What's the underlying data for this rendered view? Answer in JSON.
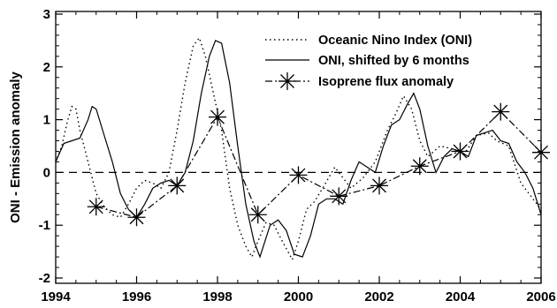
{
  "chart_data": {
    "type": "line",
    "title": "",
    "xlabel": "",
    "ylabel": "ONI - Emission anomaly",
    "xlim": [
      1994,
      2006
    ],
    "ylim": [
      -2.1,
      3.05
    ],
    "x_ticks": [
      "1994",
      "1996",
      "1998",
      "2000",
      "2002",
      "2004",
      "2006"
    ],
    "y_ticks": [
      "-2",
      "-1",
      "0",
      "1",
      "2",
      "3"
    ],
    "grid": false,
    "legend_position": "top-right",
    "zero_line": "dashed",
    "series": [
      {
        "name": "Oceanic Nino Index (ONI)",
        "style": "dotted",
        "points": [
          [
            1994.0,
            0.2
          ],
          [
            1994.15,
            0.5
          ],
          [
            1994.3,
            1.0
          ],
          [
            1994.4,
            1.25
          ],
          [
            1994.5,
            1.2
          ],
          [
            1994.6,
            0.8
          ],
          [
            1994.8,
            0.2
          ],
          [
            1995.0,
            -0.4
          ],
          [
            1995.2,
            -0.65
          ],
          [
            1995.4,
            -0.8
          ],
          [
            1995.6,
            -0.85
          ],
          [
            1995.8,
            -0.6
          ],
          [
            1996.0,
            -0.3
          ],
          [
            1996.2,
            -0.15
          ],
          [
            1996.4,
            -0.2
          ],
          [
            1996.6,
            -0.3
          ],
          [
            1996.8,
            0.0
          ],
          [
            1997.0,
            0.8
          ],
          [
            1997.2,
            1.7
          ],
          [
            1997.4,
            2.4
          ],
          [
            1997.55,
            2.55
          ],
          [
            1997.7,
            2.2
          ],
          [
            1997.9,
            1.5
          ],
          [
            1998.1,
            0.8
          ],
          [
            1998.3,
            -0.3
          ],
          [
            1998.5,
            -1.0
          ],
          [
            1998.7,
            -1.4
          ],
          [
            1998.85,
            -1.6
          ],
          [
            1999.0,
            -1.3
          ],
          [
            1999.2,
            -0.95
          ],
          [
            1999.4,
            -1.0
          ],
          [
            1999.6,
            -1.3
          ],
          [
            1999.85,
            -1.65
          ],
          [
            2000.0,
            -1.3
          ],
          [
            2000.2,
            -0.7
          ],
          [
            2000.4,
            -0.55
          ],
          [
            2000.6,
            -0.3
          ],
          [
            2000.9,
            0.1
          ],
          [
            2001.1,
            -0.1
          ],
          [
            2001.3,
            -0.3
          ],
          [
            2001.6,
            -0.1
          ],
          [
            2001.9,
            0.2
          ],
          [
            2002.2,
            0.8
          ],
          [
            2002.4,
            1.1
          ],
          [
            2002.6,
            1.45
          ],
          [
            2002.8,
            1.2
          ],
          [
            2003.0,
            0.6
          ],
          [
            2003.2,
            0.3
          ],
          [
            2003.5,
            0.5
          ],
          [
            2003.8,
            0.45
          ],
          [
            2004.1,
            0.35
          ],
          [
            2004.4,
            0.7
          ],
          [
            2004.7,
            0.75
          ],
          [
            2004.9,
            0.6
          ],
          [
            2005.2,
            0.5
          ],
          [
            2005.5,
            -0.2
          ],
          [
            2005.8,
            -0.5
          ],
          [
            2006.0,
            -0.7
          ]
        ]
      },
      {
        "name": "ONI, shifted by 6 months",
        "style": "solid",
        "points": [
          [
            1994.0,
            0.2
          ],
          [
            1994.2,
            0.55
          ],
          [
            1994.4,
            0.6
          ],
          [
            1994.6,
            0.65
          ],
          [
            1994.8,
            1.0
          ],
          [
            1994.9,
            1.25
          ],
          [
            1995.0,
            1.2
          ],
          [
            1995.2,
            0.7
          ],
          [
            1995.4,
            0.2
          ],
          [
            1995.6,
            -0.4
          ],
          [
            1995.8,
            -0.7
          ],
          [
            1996.0,
            -0.85
          ],
          [
            1996.2,
            -0.6
          ],
          [
            1996.4,
            -0.3
          ],
          [
            1996.6,
            -0.2
          ],
          [
            1996.8,
            -0.15
          ],
          [
            1997.0,
            -0.25
          ],
          [
            1997.2,
            0.0
          ],
          [
            1997.4,
            0.6
          ],
          [
            1997.6,
            1.5
          ],
          [
            1997.8,
            2.2
          ],
          [
            1997.95,
            2.5
          ],
          [
            1998.1,
            2.45
          ],
          [
            1998.3,
            1.7
          ],
          [
            1998.5,
            0.5
          ],
          [
            1998.7,
            -0.6
          ],
          [
            1998.9,
            -1.3
          ],
          [
            1999.05,
            -1.6
          ],
          [
            1999.3,
            -1.0
          ],
          [
            1999.5,
            -0.9
          ],
          [
            1999.7,
            -1.1
          ],
          [
            1999.9,
            -1.55
          ],
          [
            2000.1,
            -1.6
          ],
          [
            2000.3,
            -1.2
          ],
          [
            2000.5,
            -0.6
          ],
          [
            2000.7,
            -0.5
          ],
          [
            2000.9,
            -0.5
          ],
          [
            2001.1,
            -0.6
          ],
          [
            2001.3,
            -0.15
          ],
          [
            2001.5,
            0.2
          ],
          [
            2001.7,
            0.1
          ],
          [
            2001.9,
            0.0
          ],
          [
            2002.1,
            0.5
          ],
          [
            2002.3,
            0.9
          ],
          [
            2002.5,
            1.0
          ],
          [
            2002.7,
            1.3
          ],
          [
            2002.85,
            1.5
          ],
          [
            2003.0,
            1.2
          ],
          [
            2003.2,
            0.5
          ],
          [
            2003.4,
            0.0
          ],
          [
            2003.6,
            0.3
          ],
          [
            2003.8,
            0.45
          ],
          [
            2004.0,
            0.4
          ],
          [
            2004.2,
            0.3
          ],
          [
            2004.4,
            0.7
          ],
          [
            2004.6,
            0.75
          ],
          [
            2004.8,
            0.8
          ],
          [
            2005.0,
            0.6
          ],
          [
            2005.2,
            0.55
          ],
          [
            2005.4,
            0.2
          ],
          [
            2005.6,
            0.0
          ],
          [
            2005.8,
            -0.3
          ],
          [
            2006.0,
            -0.8
          ]
        ]
      },
      {
        "name": "Isoprene flux anomaly",
        "style": "dash-dot",
        "marker": "asterisk",
        "points": [
          [
            1995.0,
            -0.65
          ],
          [
            1996.0,
            -0.85
          ],
          [
            1997.0,
            -0.25
          ],
          [
            1998.0,
            1.05
          ],
          [
            1999.0,
            -0.8
          ],
          [
            2000.0,
            -0.05
          ],
          [
            2001.0,
            -0.45
          ],
          [
            2002.0,
            -0.25
          ],
          [
            2003.0,
            0.12
          ],
          [
            2004.0,
            0.4
          ],
          [
            2005.0,
            1.15
          ],
          [
            2006.0,
            0.38
          ]
        ]
      }
    ]
  }
}
